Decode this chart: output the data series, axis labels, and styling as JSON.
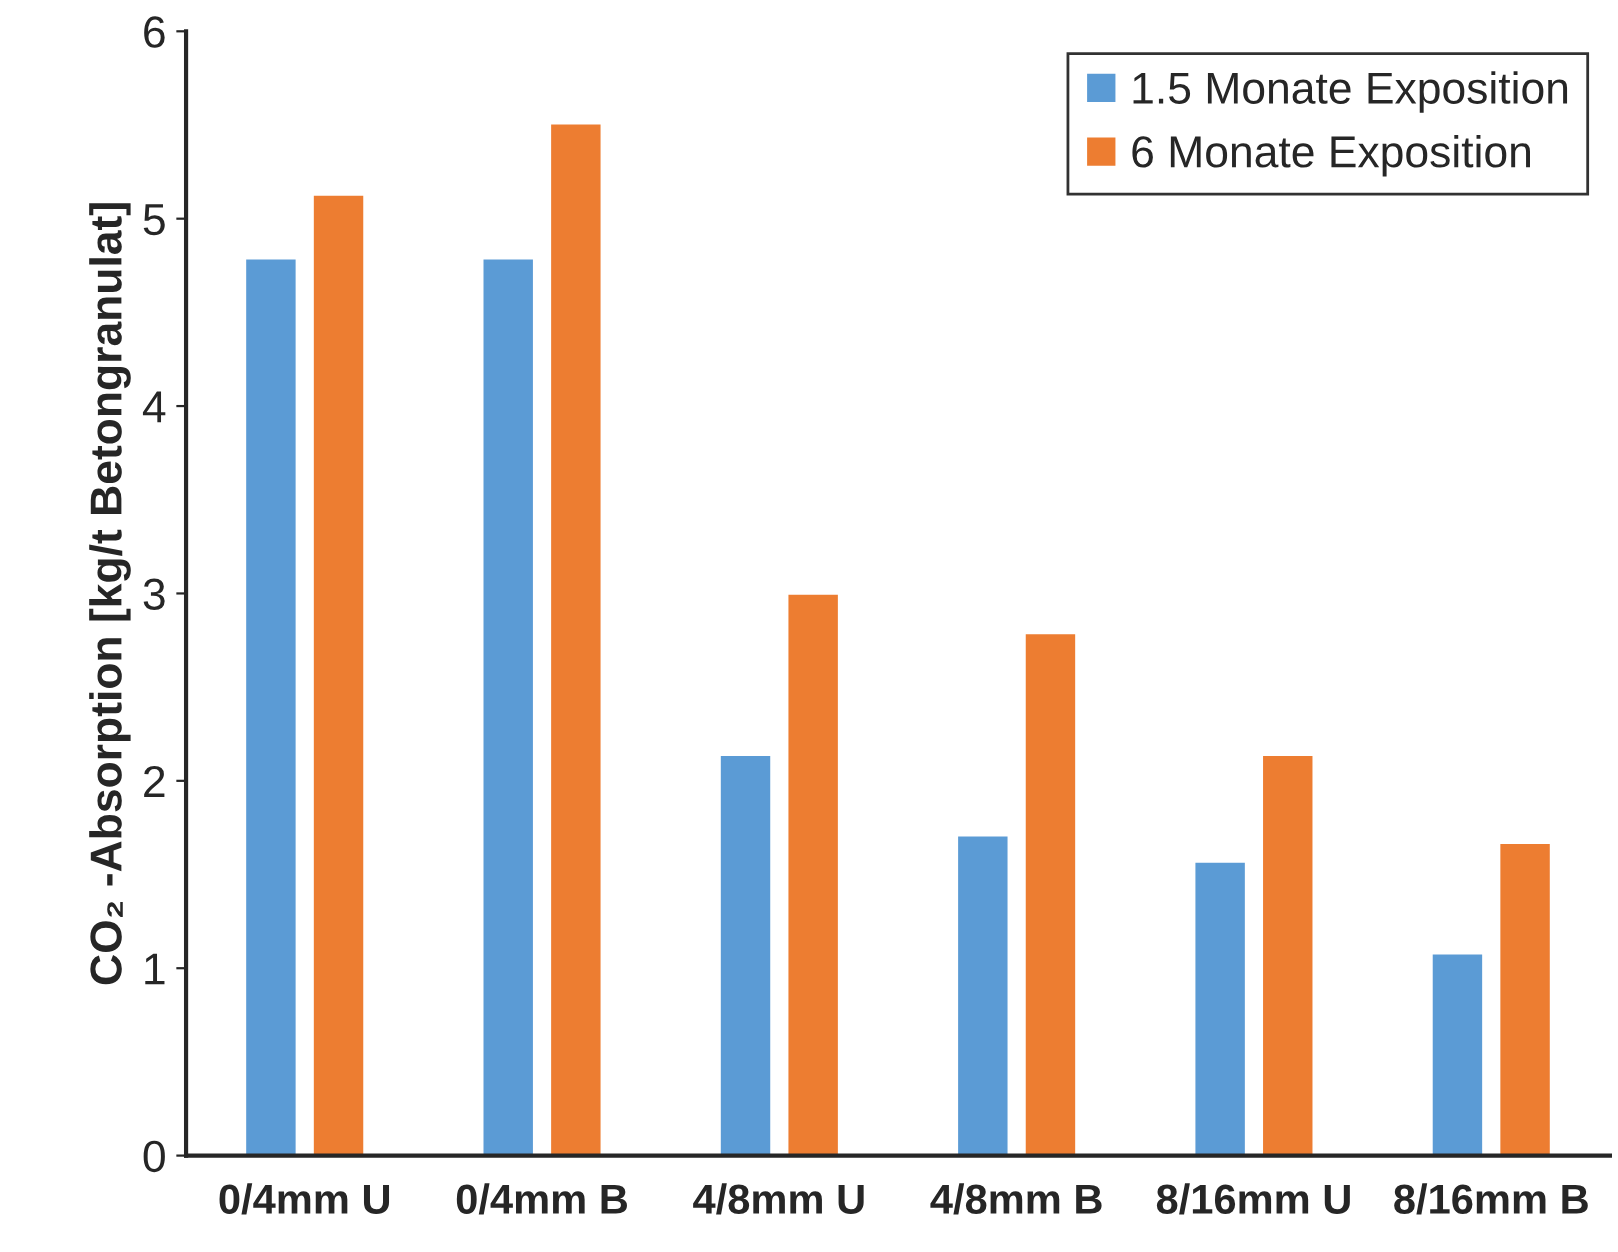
{
  "chart_data": {
    "type": "bar",
    "ylabel": "CO₂ -Absorption [kg/t Betongranulat]",
    "categories": [
      "0/4mm U",
      "0/4mm B",
      "4/8mm U",
      "4/8mm B",
      "8/16mm U",
      "8/16mm B"
    ],
    "series": [
      {
        "name": "1.5 Monate Exposition",
        "color": "#5b9bd5",
        "values": [
          4.79,
          4.79,
          2.14,
          1.71,
          1.57,
          1.08
        ]
      },
      {
        "name": "6 Monate Exposition",
        "color": "#ed7d31",
        "values": [
          5.13,
          5.51,
          3.0,
          2.79,
          2.14,
          1.67
        ]
      }
    ],
    "ylim": [
      0,
      6
    ],
    "yticks": [
      0,
      1,
      2,
      3,
      4,
      5,
      6
    ],
    "grid": false,
    "legend": "top right"
  }
}
